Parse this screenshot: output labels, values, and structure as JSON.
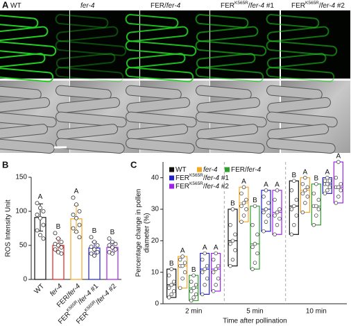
{
  "panels": {
    "a": "A",
    "b": "B",
    "c": "C"
  },
  "images": {
    "columns": [
      [
        {
          "text": "WT"
        }
      ],
      [
        {
          "text": "fer-4",
          "style": "italic"
        }
      ],
      [
        {
          "text": "FER/"
        },
        {
          "text": "fer-4",
          "style": "italic"
        }
      ],
      [
        {
          "text": "FER"
        },
        {
          "text": "K565R",
          "style": "sup"
        },
        {
          "text": "/"
        },
        {
          "text": "fer-4",
          "style": "italic"
        },
        {
          "text": " #1"
        }
      ],
      [
        {
          "text": "FER"
        },
        {
          "text": "K565R",
          "style": "sup"
        },
        {
          "text": "/"
        },
        {
          "text": "fer-4",
          "style": "italic"
        },
        {
          "text": " #2"
        }
      ]
    ]
  },
  "chart_data": [
    {
      "type": "bar",
      "ylabel": "ROS Intensity Unit",
      "categories": [
        [
          {
            "text": "WT"
          }
        ],
        [
          {
            "text": "fer-4",
            "style": "italic"
          }
        ],
        [
          {
            "text": "FER/"
          },
          {
            "text": "fer-4",
            "style": "italic"
          }
        ],
        [
          {
            "text": "FER"
          },
          {
            "text": "K565R",
            "style": "sup"
          },
          {
            "text": "/"
          },
          {
            "text": "fer-4",
            "style": "italic"
          },
          {
            "text": " #1"
          }
        ],
        [
          {
            "text": "FER"
          },
          {
            "text": "K565R",
            "style": "sup"
          },
          {
            "text": "/"
          },
          {
            "text": "fer-4",
            "style": "italic"
          },
          {
            "text": " #2"
          }
        ]
      ],
      "values": [
        91,
        50,
        89,
        46,
        47
      ],
      "errors": [
        20,
        10,
        20,
        9,
        7
      ],
      "colors": [
        "#111111",
        "#e02020",
        "#f5a623",
        "#2020d0",
        "#a020f0"
      ],
      "points": [
        [
          112,
          105,
          100,
          95,
          90,
          80,
          72,
          65,
          60
        ],
        [
          68,
          60,
          55,
          52,
          50,
          47,
          44,
          40,
          38
        ],
        [
          120,
          110,
          100,
          95,
          90,
          80,
          75,
          70,
          62
        ],
        [
          62,
          55,
          50,
          48,
          44,
          40,
          38,
          35
        ],
        [
          60,
          55,
          52,
          50,
          47,
          44,
          40,
          38
        ]
      ],
      "letters": [
        "A",
        "B",
        "A",
        "B",
        "B"
      ],
      "ylim": [
        0,
        150
      ],
      "yticks": [
        0,
        50,
        100,
        150
      ]
    },
    {
      "type": "box",
      "xlabel": "Time after pollination",
      "ylabel": [
        "Percentage change in pollen",
        "diameter (%)"
      ],
      "categories": [
        "2 min",
        "5 min",
        "10 min"
      ],
      "ylim": [
        0,
        45
      ],
      "yticks": [
        0,
        10,
        20,
        30,
        40
      ],
      "series": [
        {
          "name": [
            {
              "text": "WT"
            }
          ],
          "color": "#111111",
          "low": [
            2,
            12,
            22
          ],
          "high": [
            11,
            30,
            39
          ],
          "median": [
            6,
            20,
            31
          ],
          "letters": [
            "B",
            "B",
            "B"
          ],
          "points": [
            [
              2,
              3,
              4,
              5,
              6,
              7,
              9,
              11
            ],
            [
              12,
              14,
              17,
              19,
              20,
              22,
              25,
              30
            ],
            [
              22,
              25,
              28,
              30,
              31,
              33,
              36,
              39
            ]
          ]
        },
        {
          "name": [
            {
              "text": "fer-4",
              "style": "italic"
            }
          ],
          "color": "#f5a623",
          "low": [
            5,
            26,
            29
          ],
          "high": [
            15,
            37,
            40
          ],
          "median": [
            12,
            32,
            36
          ],
          "letters": [
            "A",
            "A",
            "A"
          ],
          "points": [
            [
              5,
              8,
              10,
              12,
              12,
              13,
              14,
              15
            ],
            [
              26,
              28,
              30,
              31,
              32,
              33,
              35,
              37
            ],
            [
              29,
              32,
              34,
              35,
              36,
              37,
              38,
              40
            ]
          ]
        },
        {
          "name": [
            {
              "text": "FER/"
            },
            {
              "text": "fer-4",
              "style": "italic"
            }
          ],
          "color": "#2ca02c",
          "low": [
            1,
            11,
            25
          ],
          "high": [
            9,
            31,
            38
          ],
          "median": [
            5,
            19,
            31
          ],
          "letters": [
            "B",
            "B",
            "B"
          ],
          "points": [
            [
              1,
              2,
              3,
              4,
              5,
              6,
              7,
              9
            ],
            [
              11,
              13,
              16,
              18,
              19,
              22,
              25,
              31
            ],
            [
              25,
              28,
              30,
              31,
              31,
              33,
              35,
              38
            ]
          ]
        },
        {
          "name": [
            {
              "text": "FER"
            },
            {
              "text": "K565R",
              "style": "sup"
            },
            {
              "text": "/"
            },
            {
              "text": "fer-4",
              "style": "italic"
            },
            {
              "text": " #1"
            }
          ],
          "color": "#2020d0",
          "low": [
            3,
            23,
            35
          ],
          "high": [
            16,
            36,
            40
          ],
          "median": [
            11,
            30,
            38
          ],
          "letters": [
            "A",
            "A",
            "A"
          ],
          "points": [
            [
              3,
              6,
              8,
              10,
              11,
              12,
              14,
              16
            ],
            [
              23,
              26,
              28,
              29,
              30,
              32,
              34,
              36
            ],
            [
              35,
              36,
              37,
              38,
              38,
              39,
              39,
              40
            ]
          ]
        },
        {
          "name": [
            {
              "text": "FER"
            },
            {
              "text": "K565R",
              "style": "sup"
            },
            {
              "text": "/"
            },
            {
              "text": "fer-4",
              "style": "italic"
            },
            {
              "text": " #2"
            }
          ],
          "color": "#a020f0",
          "low": [
            4,
            22,
            32
          ],
          "high": [
            16,
            36,
            45
          ],
          "median": [
            11,
            29,
            37
          ],
          "letters": [
            "A",
            "A",
            "A"
          ],
          "points": [
            [
              4,
              6,
              8,
              10,
              11,
              12,
              14,
              16
            ],
            [
              22,
              25,
              27,
              28,
              29,
              30,
              33,
              36
            ],
            [
              32,
              34,
              36,
              37,
              37,
              38,
              40,
              45
            ]
          ]
        }
      ]
    }
  ]
}
